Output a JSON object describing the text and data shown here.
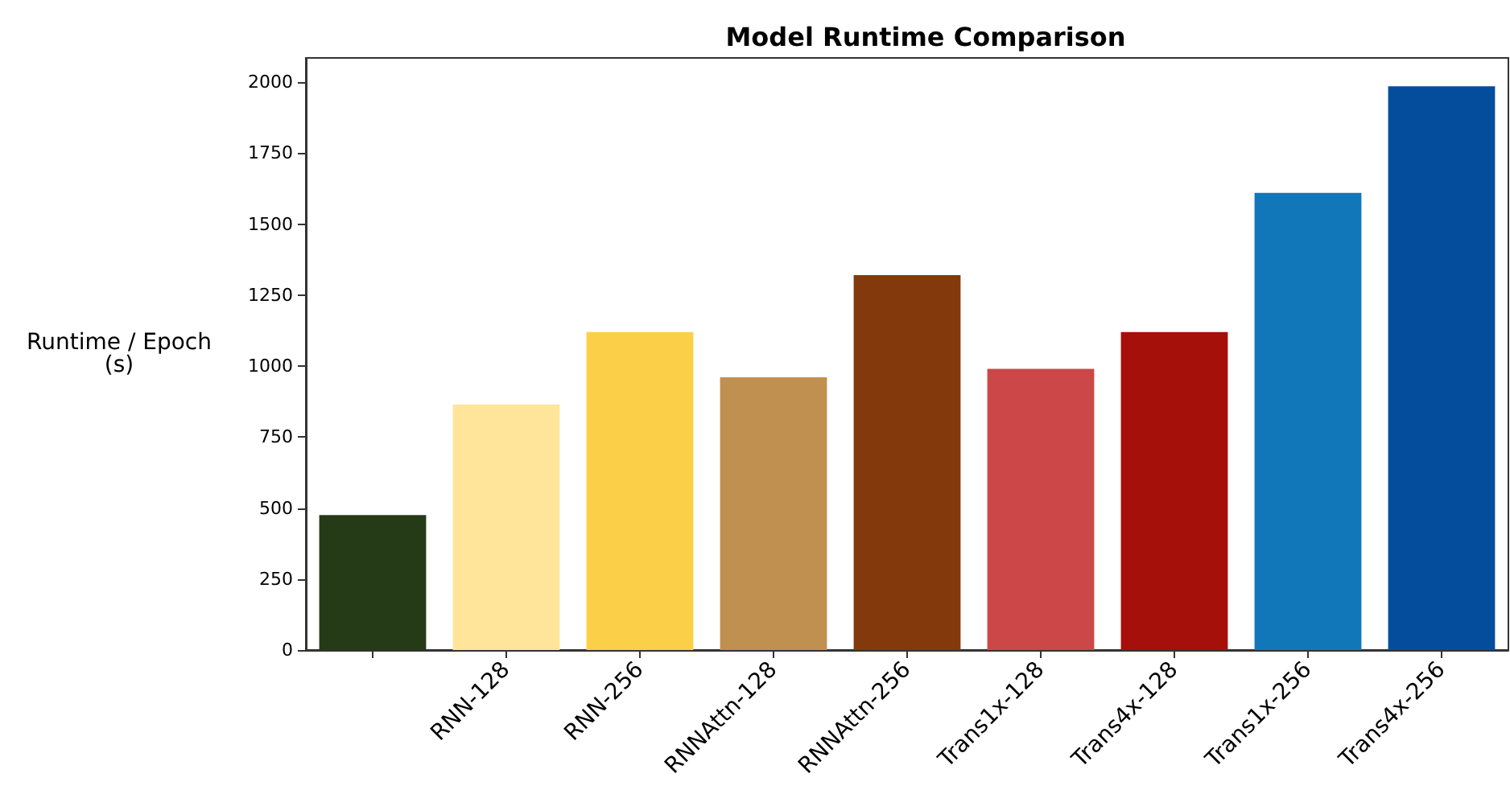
{
  "chart_data": {
    "type": "bar",
    "title": "Model Runtime Comparison",
    "ylabel": "Runtime / Epoch\n(s)",
    "categories": [
      null,
      "RNN-128",
      "RNN-256",
      "RNNAttn-128",
      "RNNAttn-256",
      "Trans1x-128",
      "Trans4x-128",
      "Trans1x-256",
      "Trans4x-256"
    ],
    "values": [
      475,
      865,
      1120,
      960,
      1320,
      990,
      1120,
      1610,
      1985
    ],
    "colors": [
      "#253a17",
      "#fee59a",
      "#fbcf47",
      "#c09050",
      "#83390b",
      "#cc4748",
      "#a6100b",
      "#1177b8",
      "#034d9c"
    ],
    "ylim": [
      0,
      2085
    ],
    "yticks": [
      0,
      250,
      500,
      750,
      1000,
      1250,
      1500,
      1750,
      2000
    ],
    "grid": false
  }
}
